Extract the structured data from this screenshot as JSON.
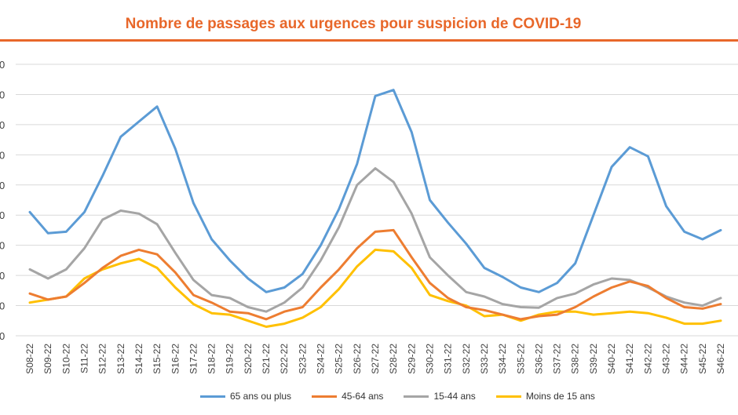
{
  "title": "Nombre de passages aux urgences pour suspicion de COVID-19",
  "colors": {
    "title": "#E8672A",
    "rule": "#E8672A",
    "grid": "#D9D9D9",
    "axis_text": "#404040"
  },
  "chart_data": {
    "type": "line",
    "title": "Nombre de passages aux urgences pour suspicion de COVID-19",
    "xlabel": "",
    "ylabel": "",
    "ylim": [
      0,
      9
    ],
    "grid": true,
    "legend_position": "bottom",
    "x": [
      "S08-22",
      "S09-22",
      "S10-22",
      "S11-22",
      "S12-22",
      "S13-22",
      "S14-22",
      "S15-22",
      "S16-22",
      "S17-22",
      "S18-22",
      "S19-22",
      "S20-22",
      "S21-22",
      "S22-22",
      "S23-22",
      "S24-22",
      "S25-22",
      "S26-22",
      "S27-22",
      "S28-22",
      "S29-22",
      "S30-22",
      "S31-22",
      "S32-22",
      "S33-22",
      "S34-22",
      "S35-22",
      "S36-22",
      "S37-22",
      "S38-22",
      "S39-22",
      "S40-22",
      "S41-22",
      "S42-22",
      "S43-22",
      "S44-22",
      "S45-22",
      "S46-22"
    ],
    "series": [
      {
        "name": "65 ans ou plus",
        "color": "#5B9BD5",
        "values": [
          4.1,
          3.4,
          3.45,
          4.1,
          5.3,
          6.6,
          7.1,
          7.6,
          6.2,
          4.4,
          3.2,
          2.5,
          1.9,
          1.45,
          1.6,
          2.05,
          3.0,
          4.2,
          5.7,
          7.95,
          8.15,
          6.75,
          4.5,
          3.75,
          3.05,
          2.25,
          1.95,
          1.6,
          1.45,
          1.75,
          2.4,
          4.0,
          5.6,
          6.25,
          5.95,
          4.3,
          3.45,
          3.2,
          3.5
        ]
      },
      {
        "name": "45-64 ans",
        "color": "#ED7D31",
        "values": [
          1.4,
          1.2,
          1.3,
          1.75,
          2.25,
          2.65,
          2.85,
          2.7,
          2.1,
          1.35,
          1.1,
          0.8,
          0.75,
          0.55,
          0.8,
          0.95,
          1.6,
          2.2,
          2.9,
          3.45,
          3.5,
          2.6,
          1.75,
          1.25,
          0.95,
          0.85,
          0.7,
          0.55,
          0.65,
          0.7,
          0.95,
          1.3,
          1.6,
          1.8,
          1.65,
          1.25,
          0.95,
          0.9,
          1.05
        ]
      },
      {
        "name": "15-44 ans",
        "color": "#A5A5A5",
        "values": [
          2.2,
          1.9,
          2.2,
          2.9,
          3.85,
          4.15,
          4.05,
          3.7,
          2.75,
          1.85,
          1.35,
          1.25,
          0.95,
          0.8,
          1.1,
          1.6,
          2.5,
          3.6,
          5.0,
          5.55,
          5.1,
          4.05,
          2.6,
          2.0,
          1.45,
          1.3,
          1.05,
          0.95,
          0.93,
          1.25,
          1.4,
          1.7,
          1.9,
          1.85,
          1.6,
          1.3,
          1.1,
          1.0,
          1.25
        ]
      },
      {
        "name": "Moins de 15 ans",
        "color": "#FFC000",
        "values": [
          1.1,
          1.2,
          1.3,
          1.9,
          2.2,
          2.4,
          2.55,
          2.25,
          1.6,
          1.05,
          0.75,
          0.7,
          0.5,
          0.3,
          0.4,
          0.6,
          0.95,
          1.55,
          2.3,
          2.85,
          2.8,
          2.25,
          1.35,
          1.15,
          1.0,
          0.65,
          0.7,
          0.5,
          0.7,
          0.8,
          0.8,
          0.7,
          0.75,
          0.8,
          0.75,
          0.6,
          0.4,
          0.4,
          0.5
        ]
      }
    ]
  }
}
